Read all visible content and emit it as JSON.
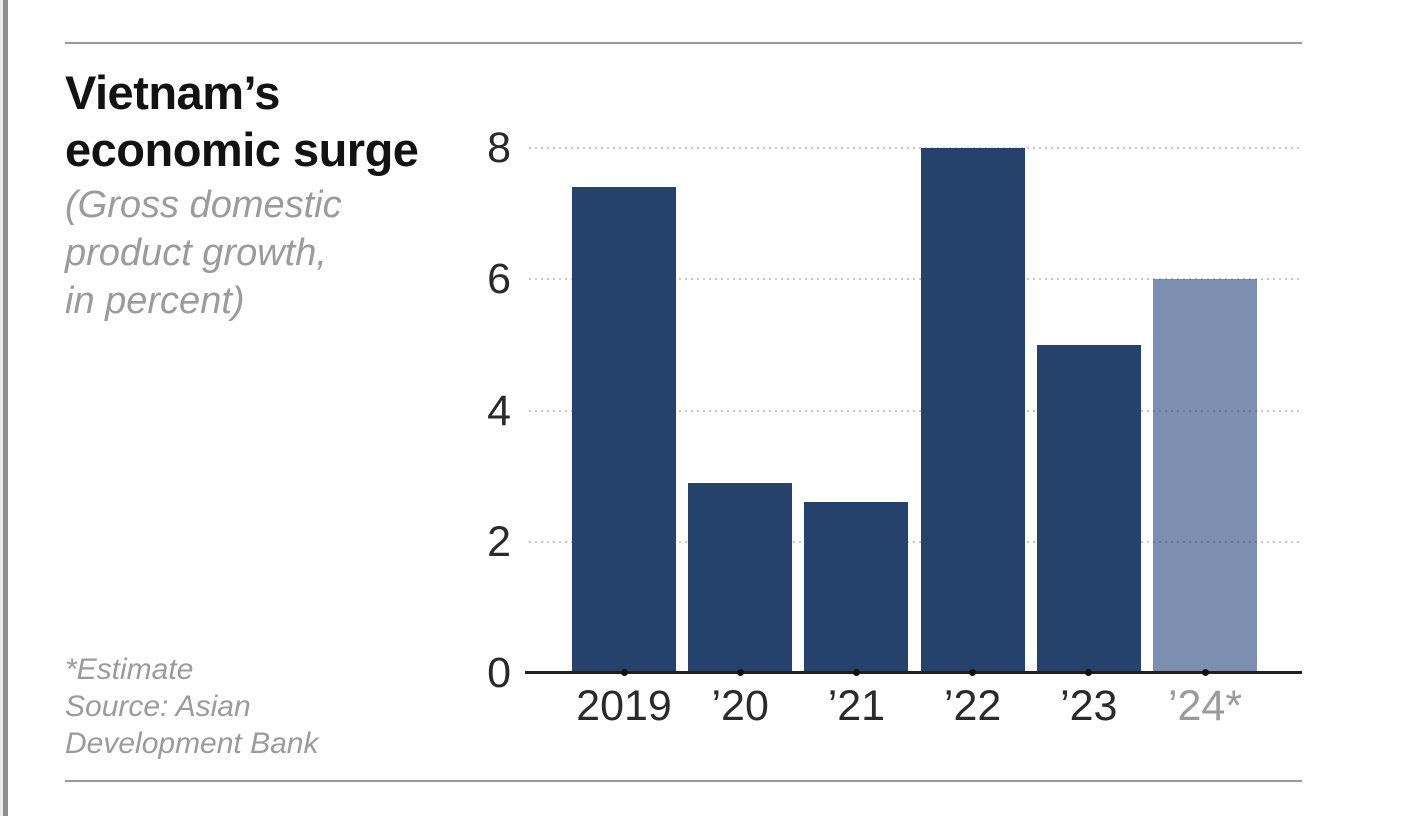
{
  "header": {
    "title": "Vietnam’s\neconomic surge",
    "subtitle": "(Gross domestic\nproduct growth,\nin percent)"
  },
  "footnote": "*Estimate\nSource: Asian\nDevelopment Bank",
  "chart_data": {
    "type": "bar",
    "title": "Vietnam’s economic surge",
    "subtitle": "(Gross domestic product growth, in percent)",
    "categories": [
      "2019",
      "’20",
      "’21",
      "’22",
      "’23",
      "’24*"
    ],
    "values": [
      7.4,
      2.9,
      2.6,
      8.0,
      5.0,
      6.0
    ],
    "ylim": [
      0,
      8
    ],
    "yticks": [
      0,
      2,
      4,
      6,
      8
    ],
    "grid": "horizontal-dotted",
    "legend": "none",
    "estimate_index": 5,
    "note": "*Estimate",
    "source": "Source: Asian Development Bank",
    "colors": {
      "bar": "#24426b",
      "estimate_bar": "rgba(43,74,128,0.62)",
      "axis": "#202020",
      "gridline": "#c9c9c9",
      "tick_label": "#2a2a2a",
      "estimate_tick_label": "#9b9b9b",
      "title": "#121212",
      "subtitle": "#9b9b9b",
      "rule": "#9a9a9a"
    }
  }
}
